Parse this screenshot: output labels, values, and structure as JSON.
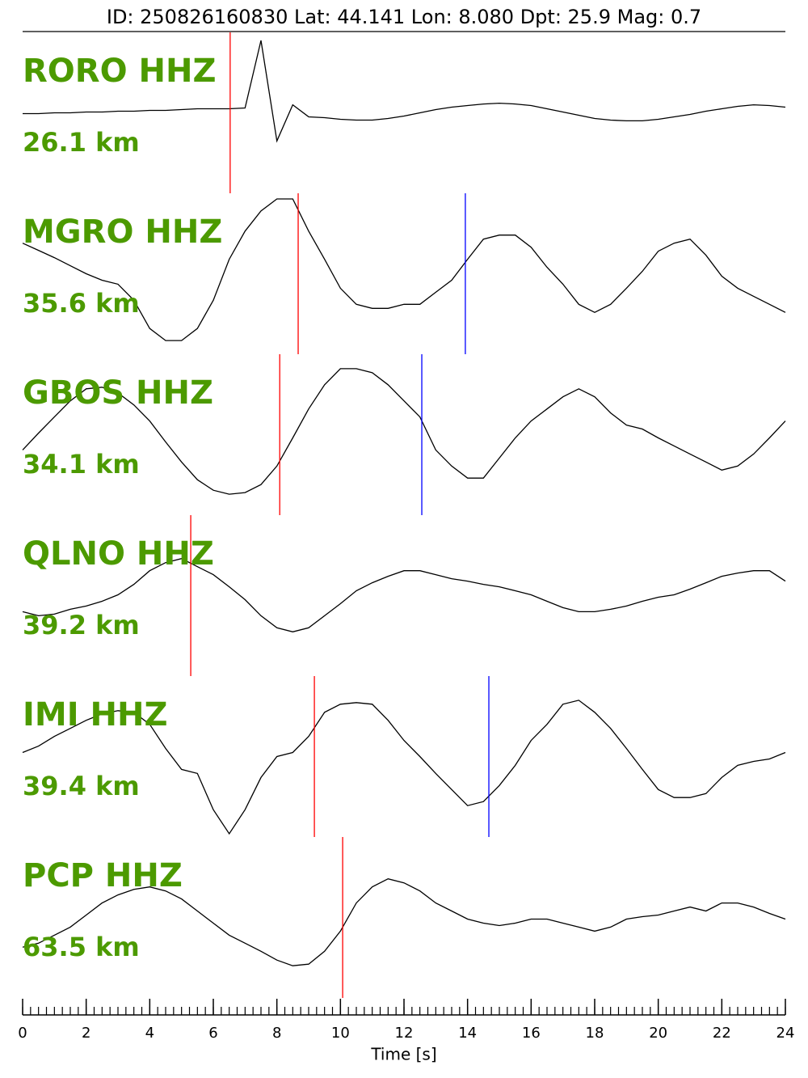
{
  "chart_data": {
    "type": "seismogram",
    "title": "ID: 250826160830 Lat:  44.141 Lon:   8.080 Dpt:    25.9 Mag:   0.7",
    "xlabel": "Time [s]",
    "xlim": [
      0,
      24
    ],
    "xticks": [
      0,
      2,
      4,
      6,
      8,
      10,
      12,
      14,
      16,
      18,
      20,
      22,
      24
    ],
    "minor_tick_interval": 0.25,
    "ylim": [
      -1,
      1
    ],
    "label_color": "#4c9a00",
    "x": [
      0,
      0.5,
      1,
      1.5,
      2,
      2.5,
      3,
      3.5,
      4,
      4.5,
      5,
      5.5,
      6,
      6.5,
      7,
      7.5,
      8,
      8.5,
      9,
      9.5,
      10,
      10.5,
      11,
      11.5,
      12,
      12.5,
      13,
      13.5,
      14,
      14.5,
      15,
      15.5,
      16,
      16.5,
      17,
      17.5,
      18,
      18.5,
      19,
      19.5,
      20,
      20.5,
      21,
      21.5,
      22,
      22.5,
      23,
      23.5,
      24
    ],
    "series": [
      {
        "name": "RORO HHZ",
        "distance": "26.1 km",
        "color": "#000000",
        "values": [
          -0.01,
          -0.01,
          0,
          0,
          0.01,
          0.01,
          0.02,
          0.02,
          0.03,
          0.03,
          0.04,
          0.05,
          0.05,
          0.05,
          0.06,
          0.9,
          -0.35,
          0.1,
          -0.05,
          -0.06,
          -0.08,
          -0.09,
          -0.09,
          -0.07,
          -0.04,
          0,
          0.04,
          0.07,
          0.09,
          0.11,
          0.12,
          0.11,
          0.09,
          0.05,
          0.01,
          -0.03,
          -0.07,
          -0.09,
          -0.1,
          -0.1,
          -0.08,
          -0.05,
          -0.02,
          0.02,
          0.05,
          0.08,
          0.1,
          0.09,
          0.07
        ],
        "picks": [
          {
            "time": 6.53,
            "color": "#ff0000"
          }
        ]
      },
      {
        "name": "MGRO HHZ",
        "distance": "35.6 km",
        "color": "#000000",
        "values": [
          0.38,
          0.29,
          0.2,
          0.1,
          0,
          -0.08,
          -0.13,
          -0.33,
          -0.68,
          -0.83,
          -0.83,
          -0.68,
          -0.33,
          0.18,
          0.53,
          0.78,
          0.93,
          0.93,
          0.53,
          0.18,
          -0.18,
          -0.38,
          -0.43,
          -0.43,
          -0.38,
          -0.38,
          -0.23,
          -0.08,
          0.18,
          0.43,
          0.48,
          0.48,
          0.33,
          0.08,
          -0.13,
          -0.38,
          -0.48,
          -0.38,
          -0.18,
          0.03,
          0.28,
          0.38,
          0.43,
          0.23,
          -0.03,
          -0.18,
          -0.28,
          -0.38,
          -0.48
        ],
        "picks": [
          {
            "time": 8.67,
            "color": "#ff0000"
          },
          {
            "time": 13.93,
            "color": "#0000ff"
          }
        ]
      },
      {
        "name": "GBOS HHZ",
        "distance": "34.1 km",
        "color": "#000000",
        "values": [
          -0.19,
          0.02,
          0.22,
          0.42,
          0.57,
          0.59,
          0.52,
          0.37,
          0.17,
          -0.09,
          -0.34,
          -0.56,
          -0.69,
          -0.74,
          -0.72,
          -0.62,
          -0.39,
          -0.04,
          0.32,
          0.62,
          0.82,
          0.82,
          0.77,
          0.62,
          0.42,
          0.22,
          -0.19,
          -0.39,
          -0.54,
          -0.54,
          -0.29,
          -0.04,
          0.17,
          0.32,
          0.47,
          0.57,
          0.47,
          0.27,
          0.12,
          0.07,
          -0.04,
          -0.14,
          -0.24,
          -0.34,
          -0.44,
          -0.39,
          -0.24,
          -0.04,
          0.17
        ],
        "picks": [
          {
            "time": 8.09,
            "color": "#ff0000"
          },
          {
            "time": 12.56,
            "color": "#0000ff"
          }
        ]
      },
      {
        "name": "QLNO HHZ",
        "distance": "39.2 km",
        "color": "#000000",
        "values": [
          -0.2,
          -0.25,
          -0.23,
          -0.17,
          -0.13,
          -0.07,
          0.01,
          0.14,
          0.31,
          0.41,
          0.46,
          0.36,
          0.26,
          0.11,
          -0.05,
          -0.25,
          -0.4,
          -0.45,
          -0.4,
          -0.25,
          -0.1,
          0.06,
          0.16,
          0.24,
          0.31,
          0.31,
          0.26,
          0.21,
          0.18,
          0.14,
          0.11,
          0.06,
          0.01,
          -0.07,
          -0.15,
          -0.2,
          -0.2,
          -0.17,
          -0.13,
          -0.07,
          -0.02,
          0.01,
          0.08,
          0.16,
          0.24,
          0.28,
          0.31,
          0.31,
          0.18
        ],
        "picks": [
          {
            "time": 5.29,
            "color": "#ff0000"
          }
        ]
      },
      {
        "name": "IMI HHZ",
        "distance": "39.4 km",
        "color": "#000000",
        "values": [
          0.05,
          0.13,
          0.25,
          0.35,
          0.45,
          0.53,
          0.57,
          0.55,
          0.4,
          0.1,
          -0.16,
          -0.21,
          -0.66,
          -0.96,
          -0.66,
          -0.26,
          0,
          0.05,
          0.25,
          0.55,
          0.65,
          0.67,
          0.65,
          0.45,
          0.2,
          0,
          -0.21,
          -0.41,
          -0.61,
          -0.56,
          -0.36,
          -0.11,
          0.2,
          0.4,
          0.65,
          0.7,
          0.55,
          0.35,
          0.1,
          -0.16,
          -0.41,
          -0.51,
          -0.51,
          -0.46,
          -0.26,
          -0.11,
          -0.06,
          -0.03,
          0.05
        ],
        "picks": [
          {
            "time": 9.18,
            "color": "#ff0000"
          },
          {
            "time": 14.67,
            "color": "#0000ff"
          }
        ]
      },
      {
        "name": "PCP HHZ",
        "distance": "63.5 km",
        "color": "#000000",
        "values": [
          -0.37,
          -0.32,
          -0.22,
          -0.12,
          0.03,
          0.18,
          0.28,
          0.35,
          0.38,
          0.33,
          0.23,
          0.08,
          -0.07,
          -0.22,
          -0.32,
          -0.42,
          -0.53,
          -0.6,
          -0.58,
          -0.42,
          -0.17,
          0.18,
          0.38,
          0.48,
          0.43,
          0.33,
          0.18,
          0.08,
          -0.02,
          -0.07,
          -0.1,
          -0.07,
          -0.02,
          -0.02,
          -0.07,
          -0.12,
          -0.17,
          -0.12,
          -0.02,
          0.01,
          0.03,
          0.08,
          0.13,
          0.08,
          0.18,
          0.18,
          0.13,
          0.05,
          -0.02
        ],
        "picks": [
          {
            "time": 10.07,
            "color": "#ff0000"
          }
        ]
      }
    ]
  }
}
